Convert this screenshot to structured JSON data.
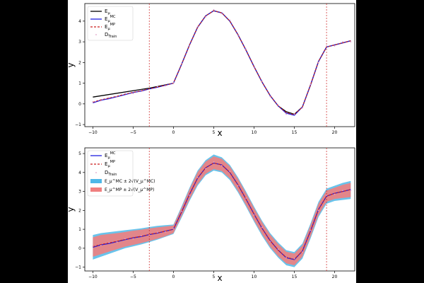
{
  "chart_data": [
    {
      "type": "line",
      "title": "",
      "xlabel": "x",
      "ylabel": "y",
      "xlim": [
        -11,
        22.5
      ],
      "ylim": [
        -1.1,
        4.85
      ],
      "xticks": [
        -10,
        -5,
        0,
        5,
        10,
        15,
        20
      ],
      "yticks": [
        -1,
        0,
        1,
        2,
        3,
        4
      ],
      "grid": false,
      "legend_position": "top-left",
      "train_interval_lines": [
        -3,
        19
      ],
      "series": [
        {
          "name": "E_μ",
          "color": "#000000",
          "style": "solid",
          "x": [
            -10,
            -3,
            0,
            1,
            2,
            3,
            4,
            5,
            6,
            7,
            8,
            9,
            10,
            11,
            12,
            13,
            14,
            15,
            16,
            17,
            18,
            19,
            20,
            21,
            22
          ],
          "y": [
            0.33,
            0.76,
            1.0,
            1.9,
            2.85,
            3.7,
            4.25,
            4.5,
            4.4,
            4.0,
            3.35,
            2.6,
            1.8,
            1.05,
            0.4,
            -0.1,
            -0.38,
            -0.5,
            -0.15,
            0.9,
            2.05,
            2.75,
            2.85,
            2.95,
            3.05
          ]
        },
        {
          "name": "E_μ^MC",
          "color": "#1f1fe0",
          "style": "solid",
          "x": [
            -10,
            -9,
            -8,
            -7,
            -6,
            -5,
            -4,
            -3,
            -2,
            -1,
            0,
            1,
            2,
            3,
            4,
            5,
            6,
            7,
            8,
            9,
            10,
            11,
            12,
            13,
            14,
            15,
            16,
            17,
            18,
            19,
            20,
            21,
            22
          ],
          "y": [
            0.05,
            0.18,
            0.25,
            0.35,
            0.45,
            0.55,
            0.62,
            0.72,
            0.8,
            0.9,
            1.0,
            1.9,
            2.85,
            3.7,
            4.25,
            4.5,
            4.4,
            4.0,
            3.35,
            2.6,
            1.8,
            1.05,
            0.4,
            -0.1,
            -0.45,
            -0.55,
            -0.15,
            0.9,
            2.05,
            2.75,
            2.85,
            2.95,
            3.05
          ]
        },
        {
          "name": "E_μ^MP",
          "color": "#cc1f1f",
          "style": "dashed",
          "x": [
            -10,
            -9,
            -8,
            -7,
            -6,
            -5,
            -4,
            -3,
            -2,
            -1,
            0,
            1,
            2,
            3,
            4,
            5,
            6,
            7,
            8,
            9,
            10,
            11,
            12,
            13,
            14,
            15,
            16,
            17,
            18,
            19,
            20,
            21,
            22
          ],
          "y": [
            0.08,
            0.2,
            0.28,
            0.37,
            0.47,
            0.56,
            0.63,
            0.73,
            0.81,
            0.9,
            1.0,
            1.9,
            2.85,
            3.7,
            4.25,
            4.5,
            4.4,
            4.0,
            3.35,
            2.6,
            1.8,
            1.05,
            0.4,
            -0.1,
            -0.42,
            -0.52,
            -0.15,
            0.9,
            2.05,
            2.75,
            2.85,
            2.95,
            3.05
          ]
        },
        {
          "name": "D_Train",
          "color": "#e0a0c8",
          "style": "points",
          "x": [
            -10,
            -9,
            -8,
            -7,
            -6,
            -5,
            -4,
            -3,
            -2,
            -1,
            0,
            1,
            2,
            3,
            4,
            5,
            6,
            7,
            8,
            9,
            10,
            11,
            12,
            13,
            14,
            15,
            16,
            17,
            18,
            19,
            20,
            21,
            22
          ],
          "y": [
            0.1,
            0.15,
            0.3,
            0.33,
            0.5,
            0.5,
            0.66,
            0.7,
            0.84,
            0.87,
            1.02,
            1.95,
            2.8,
            3.74,
            4.2,
            4.55,
            4.36,
            4.05,
            3.3,
            2.65,
            1.75,
            1.1,
            0.35,
            -0.05,
            -0.5,
            -0.5,
            -0.2,
            0.95,
            2.0,
            2.8,
            2.8,
            3.0,
            3.0
          ]
        }
      ]
    },
    {
      "type": "area",
      "title": "",
      "xlabel": "x",
      "ylabel": "y",
      "xlim": [
        -11,
        22.5
      ],
      "ylim": [
        -1.2,
        5.3
      ],
      "xticks": [
        -10,
        -5,
        0,
        5,
        10,
        15,
        20
      ],
      "yticks": [
        -1,
        0,
        1,
        2,
        3,
        4,
        5
      ],
      "grid": false,
      "legend_position": "top-left",
      "train_interval_lines": [
        -3,
        19
      ],
      "x": [
        -10,
        -9,
        -8,
        -7,
        -6,
        -5,
        -4,
        -3,
        -2,
        -1,
        0,
        1,
        2,
        3,
        4,
        5,
        6,
        7,
        8,
        9,
        10,
        11,
        12,
        13,
        14,
        15,
        16,
        17,
        18,
        19,
        20,
        21,
        22
      ],
      "series": [
        {
          "name": "E_μ^MC",
          "color": "#1f1fe0",
          "style": "solid",
          "y": [
            0.05,
            0.18,
            0.25,
            0.35,
            0.45,
            0.55,
            0.62,
            0.72,
            0.8,
            0.9,
            1.0,
            1.9,
            2.85,
            3.7,
            4.25,
            4.5,
            4.4,
            4.0,
            3.35,
            2.6,
            1.8,
            1.05,
            0.4,
            -0.1,
            -0.5,
            -0.6,
            -0.15,
            0.9,
            2.05,
            2.75,
            2.9,
            3.0,
            3.1
          ]
        },
        {
          "name": "E_μ^MP",
          "color": "#cc1f1f",
          "style": "dashed",
          "y": [
            0.08,
            0.2,
            0.28,
            0.37,
            0.47,
            0.56,
            0.63,
            0.73,
            0.81,
            0.9,
            1.0,
            1.9,
            2.85,
            3.7,
            4.25,
            4.5,
            4.4,
            4.0,
            3.35,
            2.6,
            1.8,
            1.05,
            0.4,
            -0.1,
            -0.48,
            -0.58,
            -0.15,
            0.9,
            2.05,
            2.75,
            2.9,
            3.0,
            3.1
          ]
        },
        {
          "name": "D_Train",
          "color": "#e0a0c8",
          "style": "points",
          "y": [
            0.1,
            0.15,
            0.3,
            0.33,
            0.5,
            0.5,
            0.66,
            0.7,
            0.84,
            0.87,
            1.02,
            1.95,
            2.8,
            3.74,
            4.2,
            4.55,
            4.36,
            4.05,
            3.3,
            2.65,
            1.75,
            1.1,
            0.35,
            -0.05,
            -0.5,
            -0.55,
            -0.2,
            0.95,
            2.0,
            2.8,
            2.85,
            3.05,
            3.05
          ]
        }
      ],
      "bands": [
        {
          "name": "E_μ^MC ± 2√(V_μ^MC)",
          "color": "#4fb8e8",
          "lower": [
            -0.6,
            -0.45,
            -0.3,
            -0.15,
            0.0,
            0.1,
            0.2,
            0.32,
            0.45,
            0.6,
            0.75,
            1.6,
            2.5,
            3.3,
            3.85,
            4.1,
            4.0,
            3.6,
            2.95,
            2.2,
            1.4,
            0.65,
            0.0,
            -0.5,
            -0.9,
            -1.0,
            -0.55,
            0.5,
            1.65,
            2.35,
            2.5,
            2.55,
            2.6
          ],
          "upper": [
            0.7,
            0.8,
            0.85,
            0.9,
            0.95,
            1.0,
            1.05,
            1.12,
            1.18,
            1.22,
            1.25,
            2.2,
            3.2,
            4.1,
            4.65,
            4.95,
            4.8,
            4.4,
            3.75,
            3.0,
            2.2,
            1.45,
            0.8,
            0.3,
            -0.1,
            -0.2,
            0.25,
            1.3,
            2.45,
            3.15,
            3.3,
            3.45,
            3.55
          ]
        },
        {
          "name": "E_μ^MP ± 2√(V_μ^MP)",
          "color": "#f08080",
          "lower": [
            -0.45,
            -0.32,
            -0.18,
            -0.05,
            0.08,
            0.18,
            0.27,
            0.38,
            0.5,
            0.63,
            0.8,
            1.68,
            2.58,
            3.38,
            3.93,
            4.18,
            4.08,
            3.68,
            3.03,
            2.28,
            1.48,
            0.73,
            0.08,
            -0.42,
            -0.8,
            -0.9,
            -0.45,
            0.6,
            1.75,
            2.45,
            2.6,
            2.65,
            2.7
          ],
          "upper": [
            0.58,
            0.7,
            0.75,
            0.8,
            0.86,
            0.93,
            0.98,
            1.05,
            1.1,
            1.15,
            1.2,
            2.12,
            3.12,
            4.02,
            4.57,
            4.85,
            4.72,
            4.32,
            3.67,
            2.92,
            2.12,
            1.37,
            0.72,
            0.22,
            -0.18,
            -0.28,
            0.15,
            1.2,
            2.35,
            3.05,
            3.2,
            3.35,
            3.45
          ]
        }
      ]
    }
  ]
}
